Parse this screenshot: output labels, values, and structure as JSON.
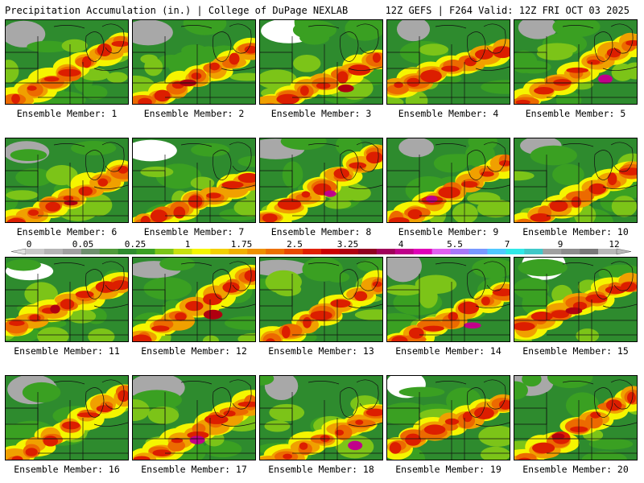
{
  "header": {
    "left_title": "Precipitation Accumulation (in.) | College of DuPage NEXLAB",
    "right_title": "12Z GEFS | F264 Valid: 12Z FRI OCT 03 2025"
  },
  "panels": [
    {
      "label": "Ensemble Member: 1"
    },
    {
      "label": "Ensemble Member: 2"
    },
    {
      "label": "Ensemble Member: 3"
    },
    {
      "label": "Ensemble Member: 4"
    },
    {
      "label": "Ensemble Member: 5"
    },
    {
      "label": "Ensemble Member: 6"
    },
    {
      "label": "Ensemble Member: 7"
    },
    {
      "label": "Ensemble Member: 8"
    },
    {
      "label": "Ensemble Member: 9"
    },
    {
      "label": "Ensemble Member: 10"
    },
    {
      "label": "Ensemble Member: 11"
    },
    {
      "label": "Ensemble Member: 12"
    },
    {
      "label": "Ensemble Member: 13"
    },
    {
      "label": "Ensemble Member: 14"
    },
    {
      "label": "Ensemble Member: 15"
    },
    {
      "label": "Ensemble Member: 16"
    },
    {
      "label": "Ensemble Member: 17"
    },
    {
      "label": "Ensemble Member: 18"
    },
    {
      "label": "Ensemble Member: 19"
    },
    {
      "label": "Ensemble Member: 20"
    }
  ],
  "colorbar": {
    "tick_labels": [
      "0",
      "0.05",
      "0.25",
      "1",
      "1.75",
      "2.5",
      "3.25",
      "4",
      "5.5",
      "7",
      "9",
      "12"
    ],
    "colors": [
      "#c8c8c8",
      "#b4b4b4",
      "#a0a0a0",
      "#6e8f6e",
      "#4f9a3a",
      "#2e8b2e",
      "#3aa022",
      "#7cc418",
      "#c8e010",
      "#f5f500",
      "#f2d000",
      "#f0b000",
      "#ee9000",
      "#ec7000",
      "#e84a00",
      "#e02000",
      "#cc0000",
      "#b00010",
      "#900020",
      "#a0005a",
      "#c0008a",
      "#e000b8",
      "#e060f0",
      "#a878f8",
      "#7898ff",
      "#50c8ff",
      "#30e8e8",
      "#40c8c8",
      "#a0a0a0",
      "#8c8c8c",
      "#787878",
      "#b8b8b8"
    ]
  }
}
